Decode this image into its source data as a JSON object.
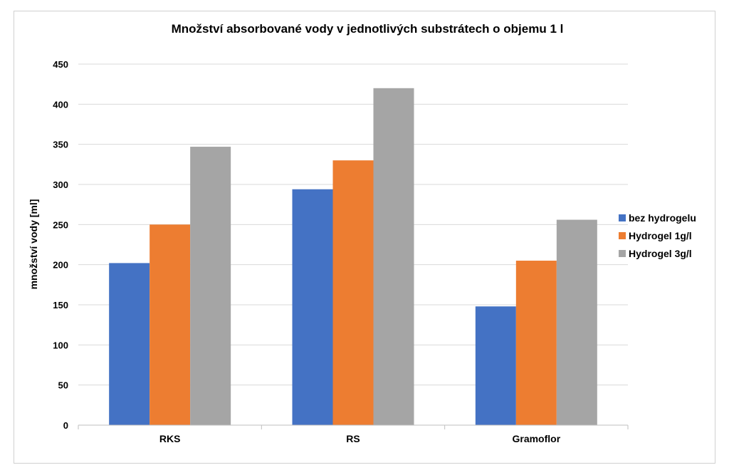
{
  "chart_data": {
    "type": "bar",
    "title": "Množství absorbované vody v jednotlivých substrátech o objemu 1 l",
    "xlabel": "",
    "ylabel": "množství vody [ml]",
    "categories": [
      "RKS",
      "RS",
      "Gramoflor"
    ],
    "series": [
      {
        "name": "bez hydrogelu",
        "color": "#4472c4",
        "values": [
          202,
          294,
          148
        ]
      },
      {
        "name": "Hydrogel 1g/l",
        "color": "#ed7d31",
        "values": [
          250,
          330,
          205
        ]
      },
      {
        "name": "Hydrogel 3g/l",
        "color": "#a5a5a5",
        "values": [
          347,
          420,
          256
        ]
      }
    ],
    "ylim": [
      0,
      450
    ],
    "yticks": [
      0,
      50,
      100,
      150,
      200,
      250,
      300,
      350,
      400,
      450
    ],
    "grid": true,
    "legend": "right"
  }
}
